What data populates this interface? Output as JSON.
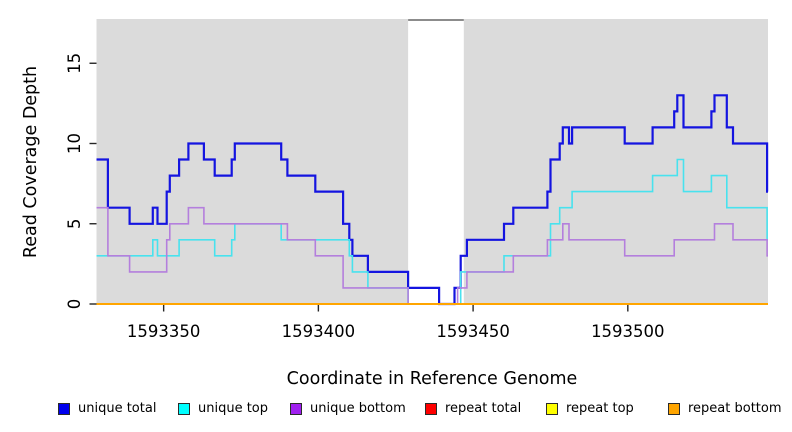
{
  "figure": {
    "x_axis_title": "Coordinate in Reference Genome",
    "y_axis_title": "Read Coverage Depth"
  },
  "chart_data": {
    "type": "line",
    "subtype": "step-coverage-plot",
    "title": "",
    "xlabel": "Coordinate in Reference Genome",
    "ylabel": "Read Coverage Depth",
    "xlim": [
      1593328.3,
      1593545.3
    ],
    "ylim": [
      0,
      17.75
    ],
    "x_ticks": [
      "1593350",
      "1593400",
      "1593450",
      "1593500"
    ],
    "x_tick_values": [
      1593350,
      1593400,
      1593450,
      1593500
    ],
    "y_ticks": [
      "0",
      "5",
      "10",
      "15"
    ],
    "y_tick_values": [
      0,
      5,
      10,
      15
    ],
    "grid": false,
    "legend_position": "bottom",
    "panel_background": "#dbdbdb",
    "gap_band": {
      "from": 1593429,
      "to": 1593447,
      "color": "#ffffff",
      "top_edge_color": "#8c8c8c"
    },
    "series": [
      {
        "name": "unique total",
        "color": "#1414e0",
        "legend_fill": "#0000ee",
        "width": 2.2,
        "points": [
          [
            1593328.3,
            9
          ],
          [
            1593332,
            6
          ],
          [
            1593339,
            5
          ],
          [
            1593346.5,
            6
          ],
          [
            1593348,
            5
          ],
          [
            1593351,
            7
          ],
          [
            1593352,
            8
          ],
          [
            1593355,
            9
          ],
          [
            1593358,
            10
          ],
          [
            1593363,
            9
          ],
          [
            1593366.5,
            8
          ],
          [
            1593372,
            9
          ],
          [
            1593373,
            10
          ],
          [
            1593388,
            9
          ],
          [
            1593390,
            8
          ],
          [
            1593399,
            7
          ],
          [
            1593408,
            5
          ],
          [
            1593410,
            4
          ],
          [
            1593411,
            3
          ],
          [
            1593416,
            2
          ],
          [
            1593429,
            1
          ],
          [
            1593439,
            0
          ],
          [
            1593444,
            1
          ],
          [
            1593446,
            3
          ],
          [
            1593448,
            4
          ],
          [
            1593460,
            5
          ],
          [
            1593463,
            6
          ],
          [
            1593474,
            7
          ],
          [
            1593475,
            9
          ],
          [
            1593478,
            10
          ],
          [
            1593479,
            11
          ],
          [
            1593481,
            10
          ],
          [
            1593482,
            11
          ],
          [
            1593499,
            10
          ],
          [
            1593508,
            11
          ],
          [
            1593515,
            12
          ],
          [
            1593516,
            13
          ],
          [
            1593518,
            11
          ],
          [
            1593527,
            12
          ],
          [
            1593528,
            13
          ],
          [
            1593532,
            11
          ],
          [
            1593534,
            10
          ],
          [
            1593545,
            7
          ]
        ]
      },
      {
        "name": "unique top",
        "color": "#48e2ee",
        "legend_fill": "#00ffff",
        "width": 1.6,
        "points": [
          [
            1593328.3,
            3
          ],
          [
            1593346.5,
            4
          ],
          [
            1593348,
            3
          ],
          [
            1593355,
            4
          ],
          [
            1593366.5,
            3
          ],
          [
            1593372,
            4
          ],
          [
            1593373,
            5
          ],
          [
            1593388,
            4
          ],
          [
            1593410,
            3
          ],
          [
            1593411,
            2
          ],
          [
            1593416,
            1
          ],
          [
            1593429,
            0
          ],
          [
            1593446,
            2
          ],
          [
            1593460,
            3
          ],
          [
            1593475,
            5
          ],
          [
            1593478,
            6
          ],
          [
            1593482,
            7
          ],
          [
            1593508,
            8
          ],
          [
            1593516,
            9
          ],
          [
            1593518,
            7
          ],
          [
            1593527,
            8
          ],
          [
            1593532,
            6
          ],
          [
            1593545,
            4
          ]
        ]
      },
      {
        "name": "unique bottom",
        "color": "#b47fdd",
        "legend_fill": "#a020f0",
        "width": 1.6,
        "points": [
          [
            1593328.3,
            6
          ],
          [
            1593332,
            3
          ],
          [
            1593339,
            2
          ],
          [
            1593351,
            4
          ],
          [
            1593352,
            5
          ],
          [
            1593358,
            6
          ],
          [
            1593363,
            5
          ],
          [
            1593390,
            4
          ],
          [
            1593399,
            3
          ],
          [
            1593408,
            1
          ],
          [
            1593429,
            0
          ],
          [
            1593445,
            1
          ],
          [
            1593448,
            2
          ],
          [
            1593463,
            3
          ],
          [
            1593474,
            4
          ],
          [
            1593479,
            5
          ],
          [
            1593481,
            4
          ],
          [
            1593499,
            3
          ],
          [
            1593515,
            4
          ],
          [
            1593528,
            5
          ],
          [
            1593534,
            4
          ],
          [
            1593545,
            3
          ]
        ]
      },
      {
        "name": "repeat total",
        "color": "#ff0000",
        "legend_fill": "#ff0000",
        "width": 1.6,
        "points": [
          [
            1593328.3,
            0
          ]
        ]
      },
      {
        "name": "repeat top",
        "color": "#ffff00",
        "legend_fill": "#ffff00",
        "width": 1.6,
        "points": [
          [
            1593328.3,
            0
          ]
        ]
      },
      {
        "name": "repeat bottom",
        "color": "#ffa500",
        "legend_fill": "#ffa500",
        "width": 2.0,
        "points": [
          [
            1593328.3,
            0
          ]
        ]
      }
    ]
  }
}
